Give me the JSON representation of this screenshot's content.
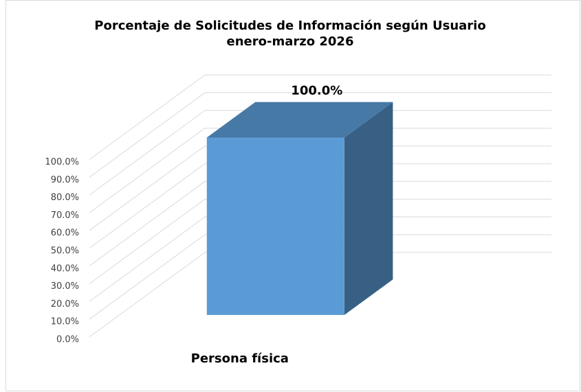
{
  "chart_data": {
    "type": "bar3d",
    "title": "Porcentaje de Solicitudes de Información según Usuario",
    "subtitle": "enero-marzo 2026",
    "categories": [
      "Persona física"
    ],
    "values": [
      100
    ],
    "value_labels": [
      "100.0%"
    ],
    "color": "#5b9bd5",
    "ylim": [
      0,
      100
    ],
    "yticks": [
      {
        "value": 0,
        "label": "0.0%"
      },
      {
        "value": 10,
        "label": "10.0%"
      },
      {
        "value": 20,
        "label": "20.0%"
      },
      {
        "value": 30,
        "label": "30.0%"
      },
      {
        "value": 40,
        "label": "40.0%"
      },
      {
        "value": 50,
        "label": "50.0%"
      },
      {
        "value": 60,
        "label": "60.0%"
      },
      {
        "value": 70,
        "label": "70.0%"
      },
      {
        "value": 80,
        "label": "80.0%"
      },
      {
        "value": 90,
        "label": "90.0%"
      },
      {
        "value": 100,
        "label": "100.0%"
      }
    ],
    "grid": true
  }
}
